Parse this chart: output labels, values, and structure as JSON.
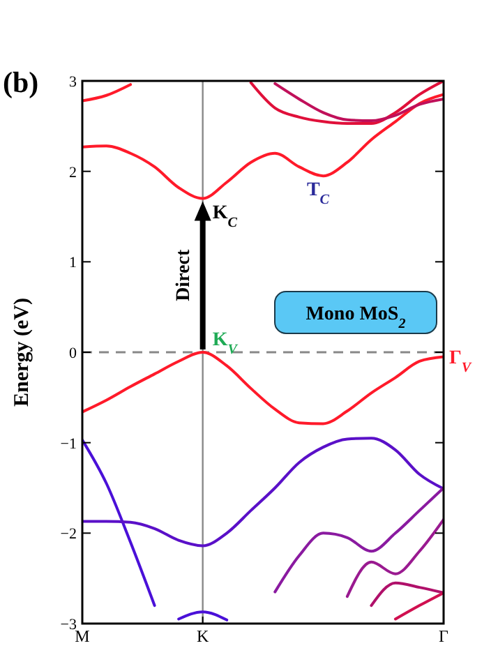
{
  "chart_data": {
    "type": "line",
    "ylabel": "Energy (eV)",
    "categories": [
      "M",
      null,
      null,
      null,
      null,
      "K",
      null,
      null,
      null,
      null,
      null,
      null,
      null,
      null,
      null,
      "Γ"
    ],
    "ylim": [
      -3,
      3
    ],
    "yticks": [
      -3,
      -2,
      -1,
      0,
      1,
      2,
      3
    ],
    "series": [
      {
        "color": "#ff1a2a",
        "values": [
          2.27,
          2.28,
          2.2,
          2.05,
          1.82,
          1.7,
          1.88,
          2.1,
          2.2,
          2.05,
          1.95,
          2.1,
          2.35,
          2.55,
          2.75,
          2.85
        ]
      },
      {
        "color": "#ff1a2a",
        "values": [
          2.78,
          2.84,
          2.96,
          null,
          null,
          null,
          null,
          null,
          null,
          null,
          null,
          null,
          null,
          null,
          null,
          null
        ]
      },
      {
        "color": "#e0103a",
        "values": [
          null,
          null,
          null,
          null,
          null,
          null,
          null,
          2.98,
          2.7,
          2.6,
          2.55,
          2.53,
          2.53,
          2.65,
          2.85,
          3.0
        ]
      },
      {
        "color": "#c0105a",
        "values": [
          null,
          null,
          null,
          null,
          null,
          null,
          null,
          null,
          2.97,
          2.8,
          2.65,
          2.57,
          2.56,
          2.62,
          2.74,
          2.8
        ]
      },
      {
        "color": "#ff1a2a",
        "values": [
          -0.66,
          -0.53,
          -0.38,
          -0.24,
          -0.1,
          0,
          -0.15,
          -0.4,
          -0.63,
          -0.78,
          -0.79,
          -0.65,
          -0.45,
          -0.28,
          -0.1,
          -0.05
        ]
      },
      {
        "color": "#4a10d8",
        "values": [
          -0.97,
          -1.45,
          -2.1,
          -2.8,
          null,
          null,
          null,
          null,
          null,
          null,
          null,
          null,
          null,
          null,
          null,
          null
        ]
      },
      {
        "color": "#4a10d8",
        "values": [
          null,
          null,
          null,
          null,
          -2.95,
          -2.87,
          -2.96,
          null,
          null,
          null,
          null,
          null,
          null,
          null,
          null,
          null
        ]
      },
      {
        "color": "#5a10c8",
        "values": [
          -1.87,
          -1.87,
          -1.88,
          -1.95,
          -2.08,
          -2.14,
          -2.0,
          -1.75,
          -1.5,
          -1.22,
          -1.05,
          -0.96,
          -0.95,
          -1.08,
          -1.35,
          -1.51
        ]
      },
      {
        "color": "#8a1aa0",
        "values": [
          null,
          null,
          null,
          null,
          null,
          null,
          null,
          null,
          -2.65,
          -2.25,
          -2.0,
          -2.05,
          -2.2,
          -2.0,
          -1.75,
          -1.5
        ]
      },
      {
        "color": "#9a1a90",
        "values": [
          null,
          null,
          null,
          null,
          null,
          null,
          null,
          null,
          null,
          null,
          null,
          -2.7,
          -2.32,
          -2.45,
          -2.2,
          -1.85
        ]
      },
      {
        "color": "#b0106a",
        "values": [
          null,
          null,
          null,
          null,
          null,
          null,
          null,
          null,
          null,
          null,
          null,
          null,
          -2.8,
          -2.55,
          -2.6,
          -2.66
        ]
      },
      {
        "color": "#d01050",
        "values": [
          null,
          null,
          null,
          null,
          null,
          null,
          null,
          null,
          null,
          null,
          null,
          null,
          null,
          -2.95,
          -2.8,
          -2.66
        ]
      }
    ],
    "ref_lines": [
      {
        "axis": "x",
        "value": "K",
        "color": "#888888",
        "line_style": "solid"
      },
      {
        "axis": "y",
        "value": 0,
        "color": "#888888",
        "line_style": "dashed"
      }
    ],
    "annotations": [
      "(b)",
      "Mono MoS$_{2}$",
      "T$_{C}$",
      {
        "text": "K$_{C}$",
        "x": "K",
        "y": 1.7
      },
      {
        "text": "K$_{V}$",
        "x": "K",
        "y": 0
      },
      {
        "text": "Γ$_{V}$",
        "x": "Γ",
        "y": -0.05
      },
      {
        "text": "Direct",
        "x": "K",
        "y": 0.85
      }
    ]
  }
}
